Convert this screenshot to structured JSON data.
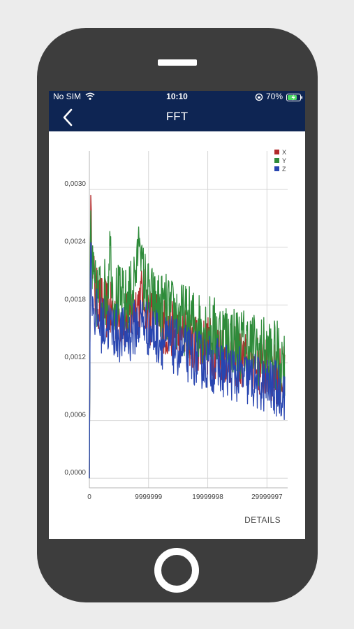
{
  "status_bar": {
    "carrier": "No SIM",
    "time": "10:10",
    "battery": "70%"
  },
  "app_bar": {
    "title": "FFT",
    "back_icon": "chevron-left-icon"
  },
  "chart_data": {
    "type": "line",
    "title": "",
    "xlabel": "",
    "ylabel": "",
    "xlim": [
      0,
      33500000
    ],
    "ylim": [
      -0.0001,
      0.0034
    ],
    "x_ticks": [
      0,
      9999999,
      19999998,
      29999997
    ],
    "x_tick_labels": [
      "0",
      "9999999",
      "19999998",
      "29999997"
    ],
    "y_ticks": [
      0.0,
      0.0006,
      0.0012,
      0.0018,
      0.0024,
      0.003
    ],
    "y_tick_labels": [
      "0,0000",
      "0,0006",
      "0,0012",
      "0,0018",
      "0,0024",
      "0,0030"
    ],
    "grid": true,
    "legend_position": "top-right",
    "series": [
      {
        "name": "X",
        "color": "#b22a2a",
        "x": [
          0,
          200000,
          400000,
          700000,
          1000000,
          1500000,
          2000000,
          3000000,
          4000000,
          5000000,
          6000000,
          7000000,
          8000000,
          9000000,
          10000000,
          11000000,
          12000000,
          13000000,
          14000000,
          15000000,
          16000000,
          17000000,
          18000000,
          19000000,
          20000000,
          21000000,
          22000000,
          23000000,
          24000000,
          25000000,
          26000000,
          27000000,
          28000000,
          29000000,
          30000000,
          31000000,
          32000000,
          33000000
        ],
        "y": [
          0.0,
          0.0029,
          0.0024,
          0.0021,
          0.0019,
          0.00185,
          0.0018,
          0.00175,
          0.0017,
          0.00168,
          0.00165,
          0.0017,
          0.0018,
          0.0019,
          0.0017,
          0.00165,
          0.0016,
          0.00155,
          0.00152,
          0.0015,
          0.00148,
          0.00145,
          0.00142,
          0.0014,
          0.00138,
          0.00135,
          0.00132,
          0.0013,
          0.00128,
          0.00125,
          0.00122,
          0.0012,
          0.00118,
          0.00115,
          0.00112,
          0.0011,
          0.00108,
          0.00105
        ]
      },
      {
        "name": "Y",
        "color": "#2e8b3a",
        "x": [
          0,
          200000,
          400000,
          700000,
          1000000,
          1500000,
          2000000,
          3000000,
          3500000,
          4000000,
          5000000,
          6000000,
          7000000,
          8000000,
          8500000,
          9000000,
          10000000,
          11000000,
          12000000,
          13000000,
          14000000,
          15000000,
          16000000,
          17000000,
          18000000,
          19000000,
          20000000,
          21000000,
          22000000,
          23000000,
          24000000,
          25000000,
          26000000,
          27000000,
          28000000,
          29000000,
          30000000,
          31000000,
          32000000,
          33000000
        ],
        "y": [
          0.0,
          0.0028,
          0.0022,
          0.002,
          0.0019,
          0.0019,
          0.00195,
          0.0019,
          0.0025,
          0.0019,
          0.00185,
          0.0018,
          0.0019,
          0.0022,
          0.0026,
          0.0021,
          0.0019,
          0.0018,
          0.00178,
          0.00175,
          0.0017,
          0.00168,
          0.00165,
          0.00162,
          0.0016,
          0.00158,
          0.00155,
          0.00152,
          0.0015,
          0.00148,
          0.00145,
          0.00142,
          0.0014,
          0.00138,
          0.00135,
          0.00132,
          0.0013,
          0.00128,
          0.00125,
          0.0012
        ]
      },
      {
        "name": "Z",
        "color": "#2845b0",
        "x": [
          0,
          200000,
          400000,
          700000,
          1000000,
          1500000,
          2000000,
          3000000,
          4000000,
          5000000,
          6000000,
          7000000,
          8000000,
          9000000,
          10000000,
          11000000,
          12000000,
          13000000,
          14000000,
          15000000,
          16000000,
          17000000,
          18000000,
          19000000,
          20000000,
          21000000,
          22000000,
          23000000,
          24000000,
          25000000,
          26000000,
          27000000,
          28000000,
          29000000,
          30000000,
          31000000,
          32000000,
          33000000
        ],
        "y": [
          0.0,
          0.0027,
          0.002,
          0.0018,
          0.0017,
          0.00165,
          0.0016,
          0.00158,
          0.00155,
          0.0015,
          0.00148,
          0.0015,
          0.0016,
          0.00165,
          0.00155,
          0.0015,
          0.00145,
          0.0014,
          0.00138,
          0.00135,
          0.0013,
          0.00128,
          0.00125,
          0.00122,
          0.0012,
          0.00118,
          0.00115,
          0.00112,
          0.0011,
          0.00108,
          0.00105,
          0.00102,
          0.001,
          0.00098,
          0.00096,
          0.00094,
          0.00092,
          0.0009
        ]
      }
    ]
  },
  "actions": {
    "details_label": "DETAILS"
  }
}
